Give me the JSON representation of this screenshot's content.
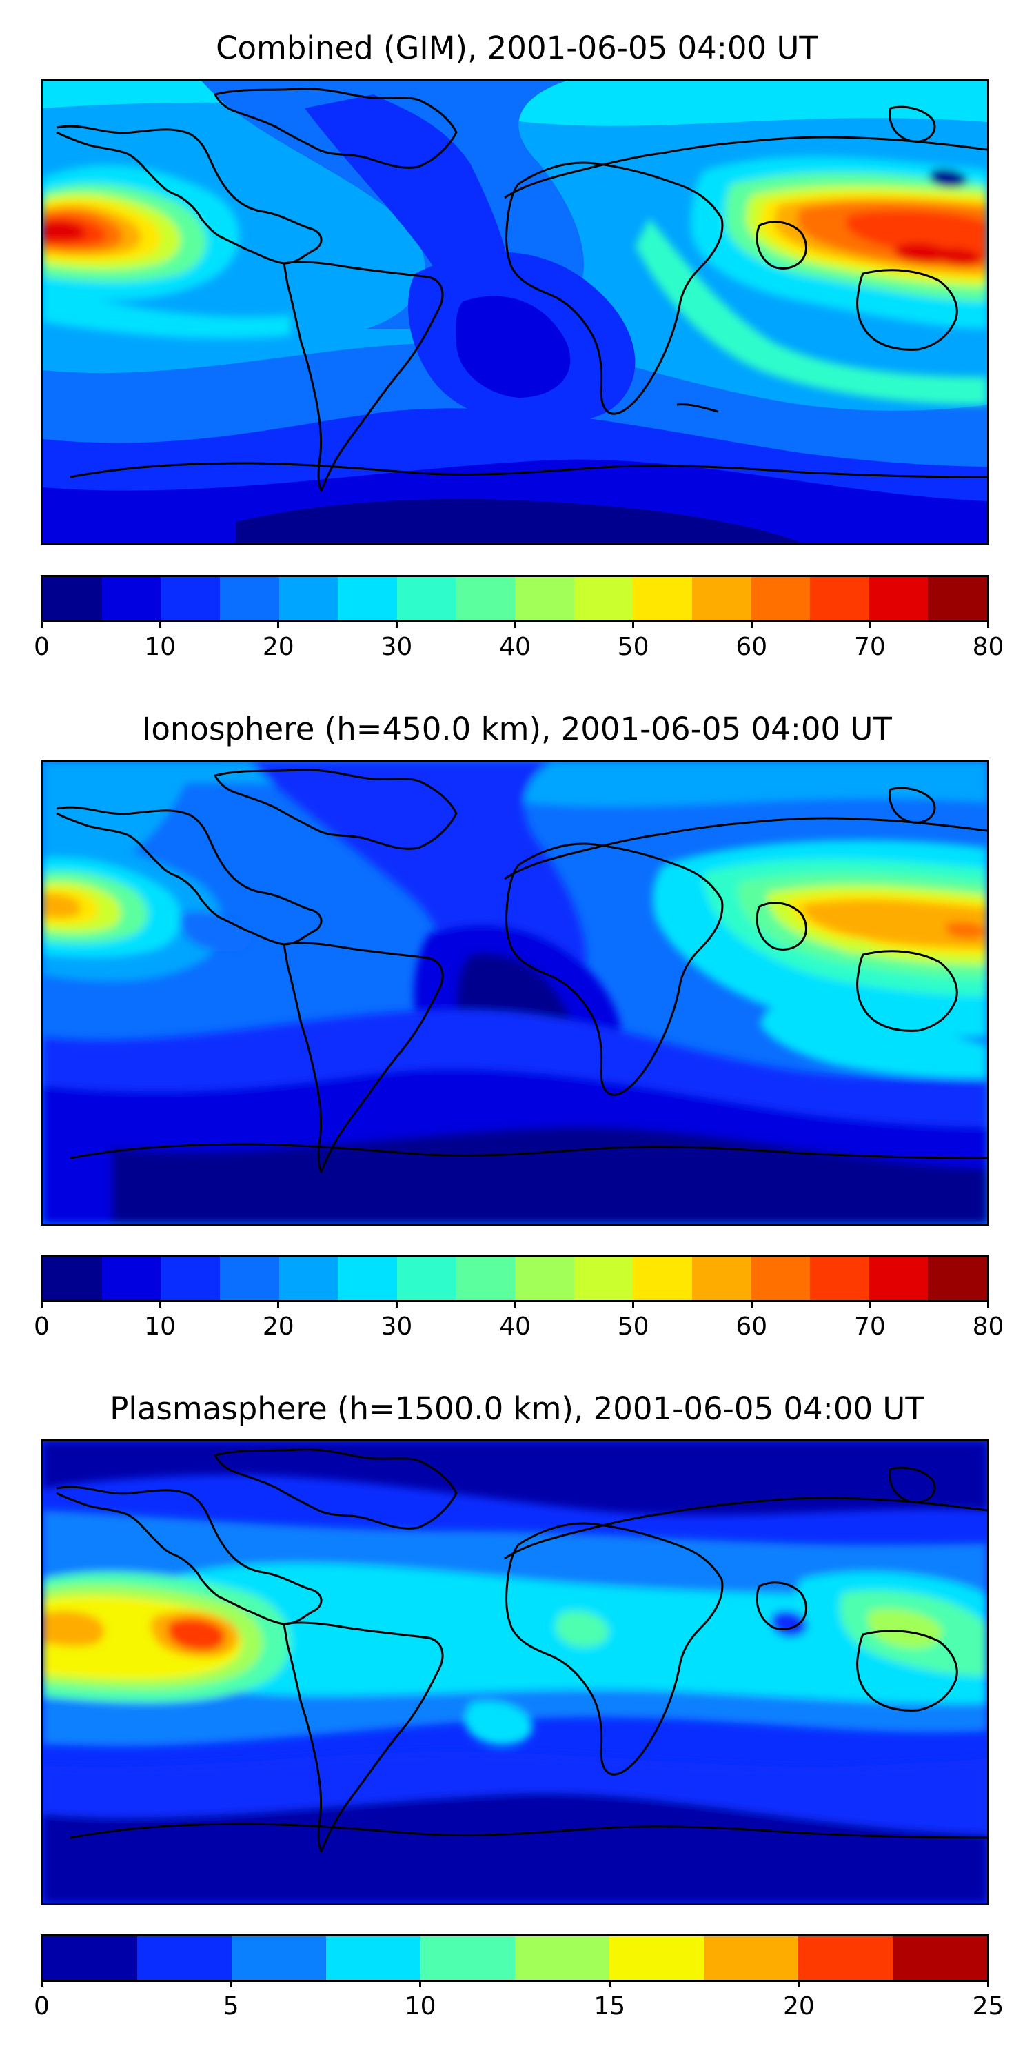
{
  "panels": [
    {
      "title": "Combined (GIM), 2001-06-05 04:00 UT",
      "colorbar": {
        "colors": [
          "#00008f",
          "#0000e0",
          "#0a2dff",
          "#0a6eff",
          "#00a5ff",
          "#00e1ff",
          "#2efdcb",
          "#5cff9e",
          "#a2ff58",
          "#cbff2e",
          "#ffe700",
          "#ffac00",
          "#ff7000",
          "#ff3a00",
          "#e20000",
          "#9a0000"
        ],
        "tick_labels": [
          "0",
          "10",
          "20",
          "30",
          "40",
          "50",
          "60",
          "70",
          "80"
        ]
      }
    },
    {
      "title": "Ionosphere  (h=450.0 km), 2001-06-05 04:00 UT",
      "colorbar": {
        "colors": [
          "#00008f",
          "#0000e0",
          "#0a2dff",
          "#0a6eff",
          "#00a5ff",
          "#00e1ff",
          "#2efdcb",
          "#5cff9e",
          "#a2ff58",
          "#cbff2e",
          "#ffe700",
          "#ffac00",
          "#ff7000",
          "#ff3a00",
          "#e20000",
          "#9a0000"
        ],
        "tick_labels": [
          "0",
          "10",
          "20",
          "30",
          "40",
          "50",
          "60",
          "70",
          "80"
        ]
      }
    },
    {
      "title": "Plasmasphere (h=1500.0 km), 2001-06-05 04:00 UT",
      "colorbar": {
        "colors": [
          "#0000a8",
          "#0a2dff",
          "#0a80ff",
          "#00e1ff",
          "#4dffaf",
          "#a2ff58",
          "#f7f700",
          "#ffac00",
          "#ff3a00",
          "#b00000"
        ],
        "tick_labels": [
          "0",
          "5",
          "10",
          "15",
          "20",
          "25"
        ]
      }
    }
  ]
}
